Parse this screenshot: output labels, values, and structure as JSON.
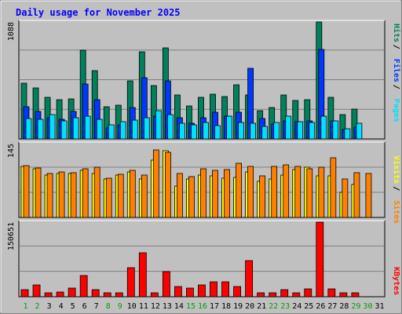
{
  "chart_data": [
    {
      "type": "bar",
      "title": "Daily usage for November 2025",
      "categories": [
        "1",
        "2",
        "3",
        "4",
        "5",
        "6",
        "7",
        "8",
        "9",
        "10",
        "11",
        "12",
        "13",
        "14",
        "15",
        "16",
        "17",
        "18",
        "19",
        "20",
        "21",
        "22",
        "23",
        "24",
        "25",
        "26",
        "27",
        "28",
        "29",
        "30",
        "31"
      ],
      "weekend_days": [
        "1",
        "2",
        "8",
        "9",
        "15",
        "16",
        "22",
        "23",
        "29",
        "30"
      ],
      "ymax_label": "1088",
      "ylim": [
        0,
        1088
      ],
      "legend": [
        {
          "label": "Hits",
          "color": "#00805c"
        },
        {
          "label": "Files",
          "color": "#0038ff"
        },
        {
          "label": "Pages",
          "color": "#00e0ff"
        }
      ],
      "series": [
        {
          "name": "Hits",
          "color": "#00805c",
          "values": [
            518,
            478,
            384,
            363,
            370,
            824,
            638,
            298,
            312,
            539,
            812,
            496,
            845,
            412,
            307,
            384,
            419,
            392,
            505,
            412,
            263,
            292,
            412,
            355,
            362,
            1088,
            384,
            223,
            275,
            0,
            0
          ]
        },
        {
          "name": "Files",
          "color": "#0038ff",
          "values": [
            298,
            256,
            194,
            182,
            256,
            513,
            363,
            103,
            128,
            291,
            570,
            211,
            542,
            194,
            143,
            194,
            249,
            211,
            249,
            655,
            188,
            137,
            171,
            159,
            171,
            830,
            171,
            85,
            109,
            0,
            0
          ]
        },
        {
          "name": "Pages",
          "color": "#00e0ff",
          "values": [
            189,
            184,
            227,
            170,
            194,
            213,
            186,
            128,
            164,
            176,
            199,
            264,
            224,
            146,
            131,
            151,
            126,
            211,
            152,
            145,
            119,
            151,
            211,
            157,
            153,
            214,
            170,
            92,
            145,
            0,
            0
          ]
        }
      ]
    },
    {
      "type": "bar",
      "ymax_label": "145",
      "ylim": [
        0,
        145
      ],
      "legend": [
        {
          "label": "Visits",
          "color": "#ffff00"
        },
        {
          "label": "Sites",
          "color": "#ff8000"
        }
      ],
      "series": [
        {
          "name": "Visits",
          "color": "#ffff00",
          "values": [
            101,
            95,
            83,
            87,
            86,
            92,
            86,
            76,
            84,
            90,
            75,
            113,
            131,
            62,
            76,
            84,
            81,
            77,
            79,
            90,
            71,
            75,
            84,
            94,
            98,
            82,
            81,
            49,
            65,
            0,
            0
          ]
        },
        {
          "name": "Sites",
          "color": "#ff8000",
          "values": [
            102,
            97,
            86,
            89,
            88,
            95,
            98,
            77,
            85,
            92,
            83,
            133,
            128,
            86,
            80,
            95,
            93,
            94,
            106,
            101,
            81,
            101,
            104,
            101,
            95,
            98,
            118,
            75,
            88,
            86,
            0
          ]
        }
      ]
    },
    {
      "type": "bar",
      "ymax_label": "150651",
      "ylim": [
        0,
        150651
      ],
      "legend": [
        {
          "label": "KBytes",
          "color": "#ff0000"
        }
      ],
      "series": [
        {
          "name": "KBytes",
          "color": "#ff0000",
          "values": [
            14500,
            23300,
            8000,
            9000,
            16800,
            43000,
            15000,
            8300,
            7300,
            59200,
            88300,
            8000,
            50800,
            21000,
            17500,
            23300,
            30300,
            30800,
            20500,
            73700,
            8100,
            7800,
            14500,
            8300,
            16300,
            150651,
            16600,
            8600,
            8600,
            0,
            0
          ]
        }
      ]
    }
  ],
  "colors": {
    "background": "#c0c0c0",
    "plot_background": "#c0c0c0",
    "grid": "#808080",
    "title": "#0000ff",
    "weekend_day": "#00a000",
    "weekday_day": "#000000"
  }
}
